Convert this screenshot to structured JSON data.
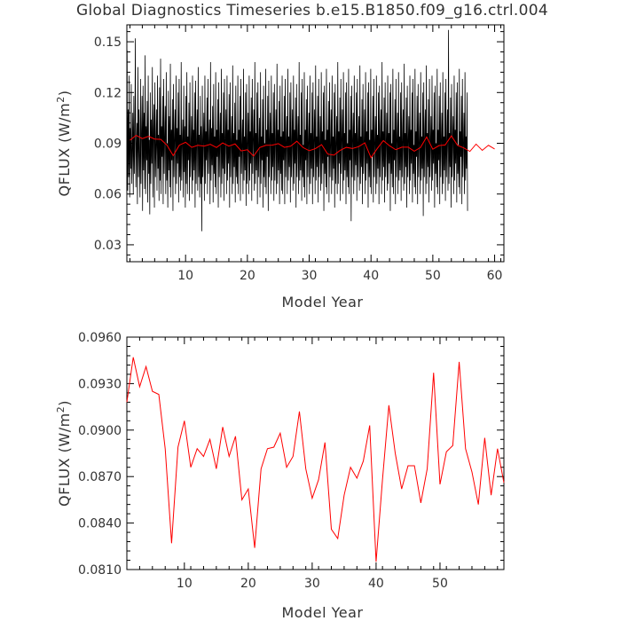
{
  "title": "Global Diagnostics Timeseries b.e15.B1850.f09_g16.ctrl.004",
  "chart_data": [
    {
      "type": "line",
      "xlabel": "Model Year",
      "ylabel": "QFLUX (W/m²)",
      "ylabel_main": "QFLUX (W/m",
      "ylabel_sup": "2",
      "ylabel_close": ")",
      "xlim": [
        0.5,
        61.5
      ],
      "ylim": [
        0.02,
        0.16
      ],
      "xticks": [
        10,
        20,
        30,
        40,
        50,
        60
      ],
      "xtick_labels": [
        "10",
        "20",
        "30",
        "40",
        "50",
        "60"
      ],
      "yticks": [
        0.03,
        0.06,
        0.09,
        0.12,
        0.15
      ],
      "ytick_labels": [
        "0.03",
        "0.06",
        "0.09",
        "0.12",
        "0.15"
      ],
      "series": [
        {
          "color": "#000000",
          "x_start": 0.54,
          "x_step": 0.08333,
          "values": [
            0.145,
            0.062,
            0.11,
            0.07,
            0.13,
            0.058,
            0.099,
            0.075,
            0.125,
            0.066,
            0.085,
            0.108,
            0.06,
            0.118,
            0.072,
            0.095,
            0.152,
            0.064,
            0.088,
            0.102,
            0.054,
            0.135,
            0.07,
            0.11,
            0.082,
            0.058,
            0.128,
            0.066,
            0.097,
            0.118,
            0.05,
            0.124,
            0.074,
            0.108,
            0.063,
            0.142,
            0.06,
            0.1,
            0.08,
            0.115,
            0.055,
            0.13,
            0.072,
            0.092,
            0.048,
            0.12,
            0.066,
            0.104,
            0.078,
            0.135,
            0.058,
            0.097,
            0.113,
            0.052,
            0.126,
            0.07,
            0.088,
            0.11,
            0.062,
            0.13,
            0.075,
            0.095,
            0.056,
            0.123,
            0.068,
            0.14,
            0.06,
            0.1,
            0.082,
            0.118,
            0.054,
            0.128,
            0.072,
            0.094,
            0.112,
            0.06,
            0.132,
            0.068,
            0.09,
            0.052,
            0.121,
            0.074,
            0.106,
            0.064,
            0.137,
            0.058,
            0.098,
            0.08,
            0.116,
            0.05,
            0.125,
            0.07,
            0.092,
            0.11,
            0.06,
            0.13,
            0.066,
            0.099,
            0.078,
            0.12,
            0.055,
            0.128,
            0.07,
            0.095,
            0.062,
            0.138,
            0.068,
            0.09,
            0.104,
            0.058,
            0.124,
            0.073,
            0.1,
            0.052,
            0.118,
            0.066,
            0.132,
            0.06,
            0.094,
            0.08,
            0.114,
            0.056,
            0.126,
            0.07,
            0.088,
            0.106,
            0.06,
            0.13,
            0.068,
            0.098,
            0.074,
            0.12,
            0.052,
            0.127,
            0.066,
            0.09,
            0.11,
            0.062,
            0.135,
            0.07,
            0.095,
            0.058,
            0.118,
            0.066,
            0.1,
            0.038,
            0.124,
            0.07,
            0.092,
            0.108,
            0.056,
            0.13,
            0.066,
            0.097,
            0.08,
            0.117,
            0.06,
            0.128,
            0.072,
            0.09,
            0.104,
            0.054,
            0.138,
            0.068,
            0.099,
            0.077,
            0.112,
            0.055,
            0.125,
            0.072,
            0.094,
            0.064,
            0.132,
            0.06,
            0.098,
            0.082,
            0.116,
            0.052,
            0.126,
            0.07,
            0.09,
            0.108,
            0.058,
            0.134,
            0.066,
            0.096,
            0.075,
            0.12,
            0.056,
            0.128,
            0.072,
            0.092,
            0.11,
            0.06,
            0.13,
            0.068,
            0.098,
            0.078,
            0.119,
            0.052,
            0.126,
            0.07,
            0.09,
            0.106,
            0.06,
            0.136,
            0.066,
            0.096,
            0.076,
            0.114,
            0.055,
            0.124,
            0.07,
            0.092,
            0.066,
            0.13,
            0.06,
            0.098,
            0.082,
            0.118,
            0.056,
            0.128,
            0.072,
            0.088,
            0.104,
            0.06,
            0.134,
            0.068,
            0.094,
            0.074,
            0.12,
            0.053,
            0.125,
            0.066,
            0.09,
            0.108,
            0.06,
            0.13,
            0.068,
            0.097,
            0.078,
            0.117,
            0.056,
            0.128,
            0.072,
            0.092,
            0.11,
            0.062,
            0.138,
            0.066,
            0.096,
            0.074,
            0.12,
            0.054,
            0.126,
            0.07,
            0.088,
            0.105,
            0.058,
            0.132,
            0.066,
            0.094,
            0.08,
            0.116,
            0.052,
            0.124,
            0.07,
            0.09,
            0.064,
            0.134,
            0.06,
            0.098,
            0.082,
            0.118,
            0.05,
            0.127,
            0.07,
            0.092,
            0.108,
            0.06,
            0.13,
            0.068,
            0.096,
            0.076,
            0.12,
            0.056,
            0.125,
            0.068,
            0.09,
            0.11,
            0.06,
            0.137,
            0.066,
            0.098,
            0.074,
            0.115,
            0.054,
            0.124,
            0.072,
            0.094,
            0.062,
            0.13,
            0.06,
            0.097,
            0.08,
            0.118,
            0.054,
            0.128,
            0.07,
            0.09,
            0.106,
            0.06,
            0.134,
            0.068,
            0.094,
            0.076,
            0.12,
            0.055,
            0.126,
            0.07,
            0.089,
            0.11,
            0.062,
            0.13,
            0.066,
            0.098,
            0.078,
            0.117,
            0.052,
            0.125,
            0.07,
            0.092,
            0.106,
            0.06,
            0.138,
            0.068,
            0.095,
            0.074,
            0.12,
            0.056,
            0.128,
            0.07,
            0.089,
            0.064,
            0.132,
            0.058,
            0.098,
            0.08,
            0.116,
            0.054,
            0.124,
            0.07,
            0.09,
            0.108,
            0.06,
            0.13,
            0.066,
            0.096,
            0.075,
            0.12,
            0.054,
            0.126,
            0.07,
            0.092,
            0.11,
            0.06,
            0.136,
            0.068,
            0.094,
            0.076,
            0.118,
            0.055,
            0.128,
            0.07,
            0.089,
            0.106,
            0.062,
            0.132,
            0.066,
            0.097,
            0.078,
            0.12,
            0.05,
            0.124,
            0.072,
            0.092,
            0.064,
            0.134,
            0.06,
            0.098,
            0.082,
            0.115,
            0.055,
            0.126,
            0.07,
            0.088,
            0.11,
            0.06,
            0.13,
            0.068,
            0.094,
            0.075,
            0.12,
            0.052,
            0.125,
            0.066,
            0.09,
            0.106,
            0.06,
            0.138,
            0.066,
            0.097,
            0.078,
            0.117,
            0.056,
            0.128,
            0.072,
            0.092,
            0.11,
            0.06,
            0.132,
            0.068,
            0.096,
            0.074,
            0.12,
            0.054,
            0.126,
            0.07,
            0.09,
            0.064,
            0.134,
            0.06,
            0.098,
            0.08,
            0.118,
            0.044,
            0.124,
            0.07,
            0.092,
            0.108,
            0.06,
            0.13,
            0.068,
            0.096,
            0.077,
            0.12,
            0.056,
            0.128,
            0.07,
            0.09,
            0.106,
            0.062,
            0.136,
            0.066,
            0.094,
            0.076,
            0.116,
            0.054,
            0.125,
            0.072,
            0.089,
            0.11,
            0.06,
            0.132,
            0.068,
            0.097,
            0.078,
            0.12,
            0.052,
            0.126,
            0.07,
            0.092,
            0.064,
            0.134,
            0.06,
            0.098,
            0.082,
            0.118,
            0.055,
            0.128,
            0.07,
            0.09,
            0.106,
            0.06,
            0.13,
            0.066,
            0.095,
            0.075,
            0.12,
            0.054,
            0.124,
            0.07,
            0.092,
            0.11,
            0.06,
            0.138,
            0.068,
            0.097,
            0.076,
            0.117,
            0.055,
            0.126,
            0.07,
            0.089,
            0.108,
            0.062,
            0.13,
            0.066,
            0.096,
            0.078,
            0.12,
            0.05,
            0.125,
            0.072,
            0.09,
            0.064,
            0.134,
            0.06,
            0.098,
            0.08,
            0.116,
            0.054,
            0.128,
            0.07,
            0.092,
            0.108,
            0.06,
            0.132,
            0.068,
            0.094,
            0.074,
            0.12,
            0.056,
            0.126,
            0.07,
            0.09,
            0.11,
            0.062,
            0.137,
            0.066,
            0.096,
            0.076,
            0.117,
            0.052,
            0.124,
            0.07,
            0.092,
            0.106,
            0.06,
            0.13,
            0.068,
            0.098,
            0.078,
            0.12,
            0.055,
            0.128,
            0.072,
            0.089,
            0.064,
            0.134,
            0.06,
            0.097,
            0.082,
            0.118,
            0.054,
            0.125,
            0.07,
            0.09,
            0.108,
            0.06,
            0.132,
            0.068,
            0.094,
            0.075,
            0.12,
            0.047,
            0.126,
            0.07,
            0.092,
            0.11,
            0.06,
            0.136,
            0.066,
            0.096,
            0.076,
            0.116,
            0.055,
            0.128,
            0.07,
            0.089,
            0.106,
            0.062,
            0.13,
            0.068,
            0.098,
            0.078,
            0.12,
            0.052,
            0.124,
            0.072,
            0.09,
            0.064,
            0.134,
            0.06,
            0.098,
            0.08,
            0.118,
            0.054,
            0.126,
            0.07,
            0.092,
            0.108,
            0.06,
            0.132,
            0.066,
            0.094,
            0.074,
            0.12,
            0.056,
            0.128,
            0.07,
            0.09,
            0.11,
            0.062,
            0.157,
            0.066,
            0.096,
            0.076,
            0.117,
            0.052,
            0.125,
            0.07,
            0.092,
            0.106,
            0.06,
            0.13,
            0.068,
            0.098,
            0.078,
            0.12,
            0.055,
            0.126,
            0.072,
            0.089,
            0.064,
            0.134,
            0.06,
            0.097,
            0.082,
            0.118,
            0.054,
            0.128,
            0.07,
            0.09,
            0.108,
            0.06,
            0.132,
            0.068,
            0.094,
            0.075,
            0.12,
            0.05
          ]
        },
        {
          "color": "#ff0000",
          "x": [
            1,
            2,
            3,
            4,
            5,
            6,
            7,
            8,
            9,
            10,
            11,
            12,
            13,
            14,
            15,
            16,
            17,
            18,
            19,
            20,
            21,
            22,
            23,
            24,
            25,
            26,
            27,
            28,
            29,
            30,
            31,
            32,
            33,
            34,
            35,
            36,
            37,
            38,
            39,
            40,
            41,
            42,
            43,
            44,
            45,
            46,
            47,
            48,
            49,
            50,
            51,
            52,
            53,
            54,
            55,
            56,
            57,
            58,
            59,
            60
          ],
          "values": [
            0.0918,
            0.0947,
            0.0928,
            0.0941,
            0.0925,
            0.0923,
            0.0888,
            0.0827,
            0.0889,
            0.0906,
            0.0876,
            0.0888,
            0.0883,
            0.0894,
            0.0875,
            0.0902,
            0.0883,
            0.0896,
            0.0855,
            0.0862,
            0.0824,
            0.0875,
            0.0888,
            0.0889,
            0.0898,
            0.0876,
            0.0883,
            0.0912,
            0.0875,
            0.0856,
            0.0868,
            0.0892,
            0.0836,
            0.083,
            0.0858,
            0.0876,
            0.0869,
            0.088,
            0.0903,
            0.0815,
            0.0868,
            0.0916,
            0.0885,
            0.0862,
            0.0877,
            0.0877,
            0.0853,
            0.0875,
            0.0937,
            0.0865,
            0.0886,
            0.089,
            0.0944,
            0.0888,
            0.0873,
            0.0852,
            0.0895,
            0.0858,
            0.0888,
            0.0866
          ]
        }
      ]
    },
    {
      "type": "line",
      "xlabel": "Model Year",
      "ylabel": "QFLUX (W/m²)",
      "ylabel_main": "QFLUX (W/m",
      "ylabel_sup": "2",
      "ylabel_close": ")",
      "xlim": [
        1,
        60
      ],
      "ylim": [
        0.081,
        0.096
      ],
      "xticks": [
        10,
        20,
        30,
        40,
        50
      ],
      "xtick_labels": [
        "10",
        "20",
        "30",
        "40",
        "50"
      ],
      "yticks": [
        0.081,
        0.084,
        0.087,
        0.09,
        0.093,
        0.096
      ],
      "ytick_labels": [
        "0.0810",
        "0.0840",
        "0.0870",
        "0.0900",
        "0.0930",
        "0.0960"
      ],
      "series": [
        {
          "color": "#ff0000",
          "x": [
            1,
            2,
            3,
            4,
            5,
            6,
            7,
            8,
            9,
            10,
            11,
            12,
            13,
            14,
            15,
            16,
            17,
            18,
            19,
            20,
            21,
            22,
            23,
            24,
            25,
            26,
            27,
            28,
            29,
            30,
            31,
            32,
            33,
            34,
            35,
            36,
            37,
            38,
            39,
            40,
            41,
            42,
            43,
            44,
            45,
            46,
            47,
            48,
            49,
            50,
            51,
            52,
            53,
            54,
            55,
            56,
            57,
            58,
            59,
            60
          ],
          "values": [
            0.0918,
            0.0947,
            0.0928,
            0.0941,
            0.0925,
            0.0923,
            0.0888,
            0.0827,
            0.0889,
            0.0906,
            0.0876,
            0.0888,
            0.0883,
            0.0894,
            0.0875,
            0.0902,
            0.0883,
            0.0896,
            0.0855,
            0.0862,
            0.0824,
            0.0875,
            0.0888,
            0.0889,
            0.0898,
            0.0876,
            0.0883,
            0.0912,
            0.0875,
            0.0856,
            0.0868,
            0.0892,
            0.0836,
            0.083,
            0.0858,
            0.0876,
            0.0869,
            0.088,
            0.0903,
            0.0815,
            0.0868,
            0.0916,
            0.0885,
            0.0862,
            0.0877,
            0.0877,
            0.0853,
            0.0875,
            0.0937,
            0.0865,
            0.0886,
            0.089,
            0.0944,
            0.0888,
            0.0873,
            0.0852,
            0.0895,
            0.0858,
            0.0888,
            0.0866
          ]
        }
      ]
    }
  ]
}
